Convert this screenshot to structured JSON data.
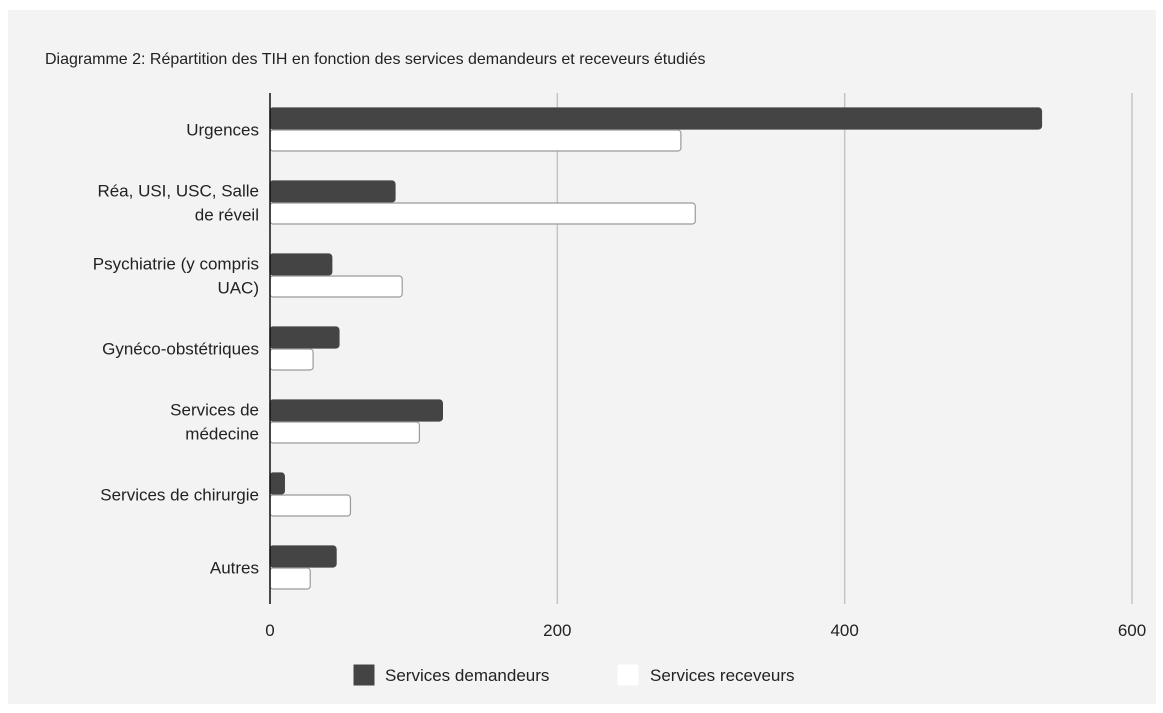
{
  "chart_data": {
    "type": "bar",
    "orientation": "horizontal",
    "title": "Diagramme 2: Répartition des TIH en fonction des services demandeurs et receveurs étudiés",
    "categories": [
      [
        "Urgences"
      ],
      [
        "Réa, USI, USC, Salle",
        "de réveil"
      ],
      [
        "Psychiatrie (y compris",
        "UAC)"
      ],
      [
        "Gynéco-obstétriques"
      ],
      [
        "Services de",
        "médecine"
      ],
      [
        "Services de chirurgie"
      ],
      [
        "Autres"
      ]
    ],
    "series": [
      {
        "name": "Services demandeurs",
        "color": "#444444",
        "values": [
          537,
          87,
          43,
          48,
          120,
          10,
          46
        ]
      },
      {
        "name": "Services receveurs",
        "color": "#ffffff",
        "values": [
          286,
          296,
          92,
          30,
          104,
          56,
          28
        ]
      }
    ],
    "xlim": [
      0,
      600
    ],
    "xticks": [
      0,
      200,
      400,
      600
    ],
    "grid": true,
    "legend": "bottom"
  }
}
